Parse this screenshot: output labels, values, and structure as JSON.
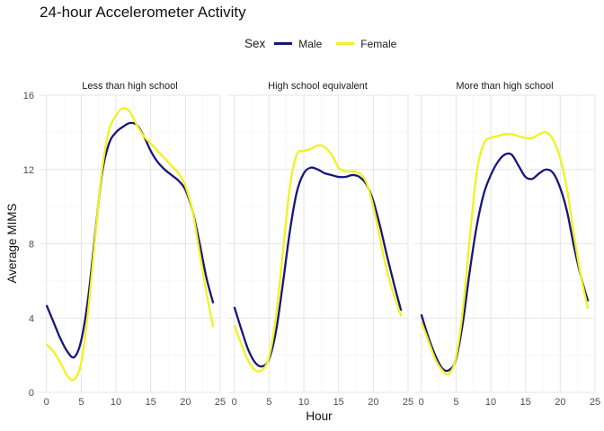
{
  "chart_data": {
    "type": "line",
    "title": "24-hour Accelerometer Activity",
    "xlabel": "Hour",
    "ylabel": "Average MIMS",
    "xlim": [
      -1,
      25
    ],
    "ylim": [
      0,
      16
    ],
    "x_ticks": [
      0,
      5,
      10,
      15,
      20,
      25
    ],
    "y_ticks": [
      0,
      4,
      8,
      12,
      16
    ],
    "grid": true,
    "legend": {
      "title": "Sex",
      "placement": "top",
      "entries": [
        {
          "name": "Male",
          "color": "#17177a"
        },
        {
          "name": "Female",
          "color": "#f2f21d"
        }
      ]
    },
    "panels": [
      {
        "title": "Less than high school",
        "series": [
          {
            "name": "Male",
            "color": "#17177a",
            "x": [
              0,
              1,
              2,
              3,
              4,
              5,
              6,
              7,
              8,
              9,
              10,
              11,
              12,
              13,
              14,
              15,
              16,
              17,
              18,
              19,
              20,
              21,
              22,
              23,
              24
            ],
            "values": [
              4.7,
              3.8,
              2.9,
              2.2,
              1.9,
              2.8,
              5.1,
              8.5,
              11.8,
              13.4,
              14.0,
              14.3,
              14.5,
              14.4,
              13.8,
              13.0,
              12.4,
              12.0,
              11.7,
              11.4,
              10.9,
              9.8,
              8.1,
              6.2,
              4.8
            ]
          },
          {
            "name": "Female",
            "color": "#f2f21d",
            "x": [
              0,
              1,
              2,
              3,
              4,
              5,
              6,
              7,
              8,
              9,
              10,
              11,
              12,
              13,
              14,
              15,
              16,
              17,
              18,
              19,
              20,
              21,
              22,
              23,
              24
            ],
            "values": [
              2.6,
              2.2,
              1.6,
              0.9,
              0.7,
              1.6,
              4.4,
              8.3,
              12.0,
              14.1,
              14.9,
              15.3,
              15.1,
              14.4,
              13.8,
              13.4,
              13.0,
              12.6,
              12.2,
              11.8,
              11.1,
              9.8,
              7.6,
              5.4,
              3.5
            ]
          }
        ]
      },
      {
        "title": "High school equivalent",
        "series": [
          {
            "name": "Male",
            "color": "#17177a",
            "x": [
              0,
              1,
              2,
              3,
              4,
              5,
              6,
              7,
              8,
              9,
              10,
              11,
              12,
              13,
              14,
              15,
              16,
              17,
              18,
              19,
              20,
              21,
              22,
              23,
              24
            ],
            "values": [
              4.6,
              3.4,
              2.3,
              1.6,
              1.4,
              1.8,
              3.3,
              5.9,
              8.7,
              10.8,
              11.8,
              12.1,
              12.0,
              11.8,
              11.7,
              11.6,
              11.6,
              11.7,
              11.6,
              11.2,
              10.3,
              8.9,
              7.3,
              5.8,
              4.4
            ]
          },
          {
            "name": "Female",
            "color": "#f2f21d",
            "x": [
              0,
              1,
              2,
              3,
              4,
              5,
              6,
              7,
              8,
              9,
              10,
              11,
              12,
              13,
              14,
              15,
              16,
              17,
              18,
              19,
              20,
              21,
              22,
              23,
              24
            ],
            "values": [
              3.6,
              2.6,
              1.7,
              1.2,
              1.2,
              1.9,
              4.1,
              7.6,
              11.1,
              12.8,
              13.0,
              13.1,
              13.3,
              13.2,
              12.8,
              12.1,
              11.9,
              11.9,
              11.8,
              11.3,
              10.0,
              8.2,
              6.5,
              5.2,
              4.1
            ]
          }
        ]
      },
      {
        "title": "More than high school",
        "series": [
          {
            "name": "Male",
            "color": "#17177a",
            "x": [
              0,
              1,
              2,
              3,
              4,
              5,
              6,
              7,
              8,
              9,
              10,
              11,
              12,
              13,
              14,
              15,
              16,
              17,
              18,
              19,
              20,
              21,
              22,
              23,
              24
            ],
            "values": [
              4.2,
              3.0,
              2.0,
              1.3,
              1.2,
              1.8,
              3.8,
              6.6,
              9.0,
              10.7,
              11.7,
              12.4,
              12.8,
              12.8,
              12.2,
              11.6,
              11.5,
              11.8,
              12.0,
              11.8,
              11.0,
              9.7,
              7.8,
              6.2,
              4.9
            ]
          },
          {
            "name": "Female",
            "color": "#f2f21d",
            "x": [
              0,
              1,
              2,
              3,
              4,
              5,
              6,
              7,
              8,
              9,
              10,
              11,
              12,
              13,
              14,
              15,
              16,
              17,
              18,
              19,
              20,
              21,
              22,
              23,
              24
            ],
            "values": [
              3.8,
              2.8,
              1.8,
              1.2,
              1.0,
              1.9,
              4.5,
              8.4,
              11.9,
              13.4,
              13.7,
              13.8,
              13.9,
              13.9,
              13.8,
              13.7,
              13.7,
              13.9,
              14.0,
              13.6,
              12.6,
              10.9,
              8.4,
              6.2,
              4.5
            ]
          }
        ]
      }
    ]
  }
}
